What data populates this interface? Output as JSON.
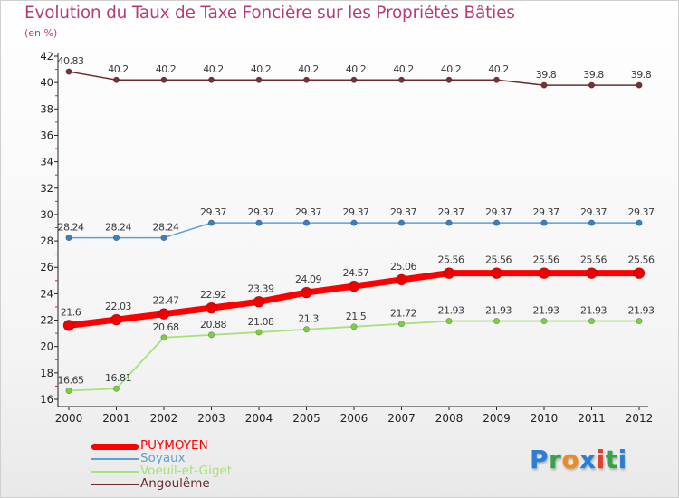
{
  "title": "Evolution du Taux de Taxe Foncière sur les Propriétés Bâties",
  "subtitle": "(en %)",
  "logo": {
    "text": "Proxiti",
    "letters": [
      {
        "char": "P",
        "color": "#2a7fd4"
      },
      {
        "char": "r",
        "color": "#3aa04a"
      },
      {
        "char": "o",
        "color": "#f08a1c"
      },
      {
        "char": "x",
        "color": "#2a7fd4"
      },
      {
        "char": "i",
        "color": "#e33e2b"
      },
      {
        "char": "t",
        "color": "#3aa04a"
      },
      {
        "char": "i",
        "color": "#2a7fd4"
      }
    ]
  },
  "chart_data": {
    "type": "line",
    "title": "Evolution du Taux de Taxe Foncière sur les Propriétés Bâties",
    "ylabel": "(en %)",
    "xlabel": "",
    "ylim": [
      16,
      42
    ],
    "yticks": [
      16,
      18,
      20,
      22,
      24,
      26,
      28,
      30,
      32,
      34,
      36,
      38,
      40,
      42
    ],
    "grid": false,
    "legend": "bottom-left",
    "categories": [
      "2000",
      "2001",
      "2002",
      "2003",
      "2004",
      "2005",
      "2006",
      "2007",
      "2008",
      "2009",
      "2010",
      "2011",
      "2012"
    ],
    "series": [
      {
        "name": "Angoulême",
        "color": "#6e2a2a",
        "marker": "#7a3030",
        "width": 1.5,
        "markerSize": 3.2,
        "labelColor": "#3a3a3a",
        "values": [
          40.83,
          40.2,
          40.2,
          40.2,
          40.2,
          40.2,
          40.2,
          40.2,
          40.2,
          40.2,
          39.8,
          39.8,
          39.8
        ],
        "labels": [
          "40.83",
          "40.2",
          "40.2",
          "40.2",
          "40.2",
          "40.2",
          "40.2",
          "40.2",
          "40.2",
          "40.2",
          "39.8",
          "39.8",
          "39.8"
        ]
      },
      {
        "name": "Soyaux",
        "color": "#5f9fd3",
        "marker": "#3a7fc4",
        "width": 1.5,
        "markerSize": 3.2,
        "labelColor": "#3a3a3a",
        "values": [
          28.24,
          28.24,
          28.24,
          29.37,
          29.37,
          29.37,
          29.37,
          29.37,
          29.37,
          29.37,
          29.37,
          29.37,
          29.37
        ],
        "labels": [
          "28.24",
          "28.24",
          "28.24",
          "29.37",
          "29.37",
          "29.37",
          "29.37",
          "29.37",
          "29.37",
          "29.37",
          "29.37",
          "29.37",
          "29.37"
        ]
      },
      {
        "name": "Voeuil-et-Giget",
        "color": "#a8e07a",
        "marker": "#7ccf3f",
        "width": 1.8,
        "markerSize": 3.2,
        "labelColor": "#3a3a3a",
        "values": [
          16.65,
          16.81,
          20.68,
          20.88,
          21.08,
          21.3,
          21.5,
          21.72,
          21.93,
          21.93,
          21.93,
          21.93,
          21.93
        ],
        "labels": [
          "16.65",
          "16.81",
          "20.68",
          "20.88",
          "21.08",
          "21.3",
          "21.5",
          "21.72",
          "21.93",
          "21.93",
          "21.93",
          "21.93",
          "21.93"
        ]
      },
      {
        "name": "PUYMOYEN",
        "color": "#ff0000",
        "marker": "#ee0000",
        "width": 7,
        "markerSize": 6,
        "labelColor": "#3a3a3a",
        "values": [
          21.6,
          22.03,
          22.47,
          22.92,
          23.39,
          24.09,
          24.57,
          25.06,
          25.56,
          25.56,
          25.56,
          25.56,
          25.56
        ],
        "labels": [
          "21.6",
          "22.03",
          "22.47",
          "22.92",
          "23.39",
          "24.09",
          "24.57",
          "25.06",
          "25.56",
          "25.56",
          "25.56",
          "25.56",
          "25.56"
        ]
      }
    ]
  },
  "legend_items": [
    {
      "name": "PUYMOYEN",
      "color": "#ff0000",
      "height": 7
    },
    {
      "name": "Soyaux",
      "color": "#5f9fd3",
      "height": 2
    },
    {
      "name": "Voeuil-et-Giget",
      "color": "#a8e07a",
      "height": 2
    },
    {
      "name": "Angoulême",
      "color": "#6e2a2a",
      "height": 2
    }
  ]
}
